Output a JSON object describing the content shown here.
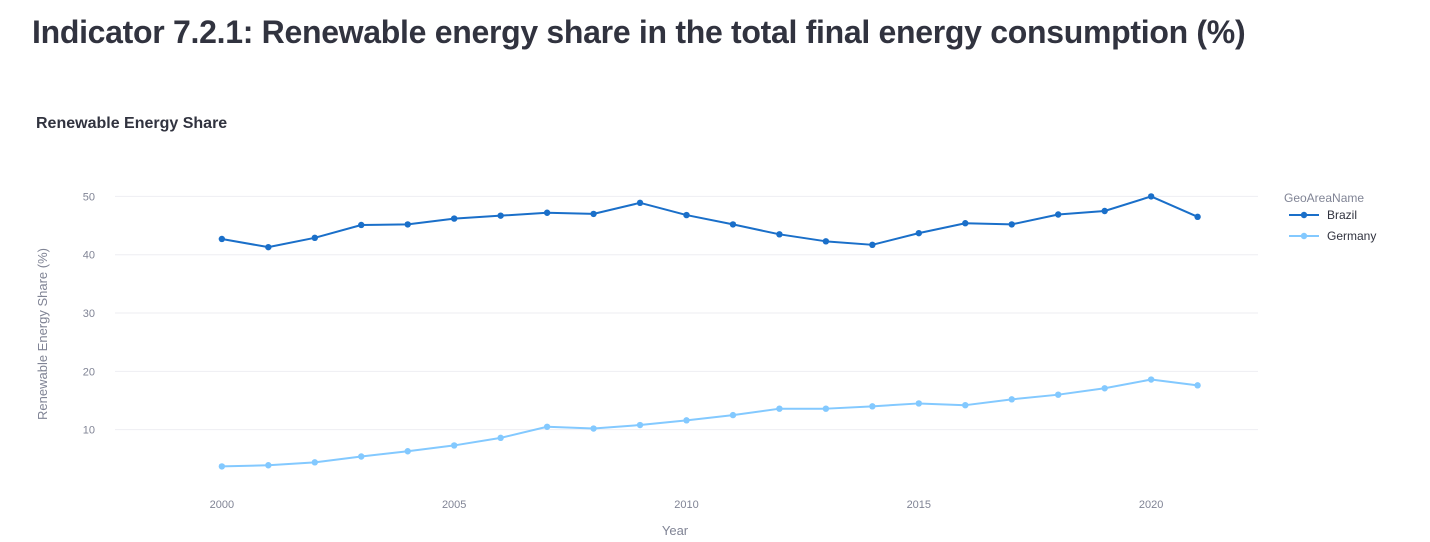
{
  "page": {
    "title": "Indicator 7.2.1: Renewable energy share in the total final energy consumption (%)"
  },
  "chart_data": {
    "type": "line",
    "title": "Renewable Energy Share",
    "xlabel": "Year",
    "ylabel": "Renewable Energy Share (%)",
    "x": [
      2000,
      2001,
      2002,
      2003,
      2004,
      2005,
      2006,
      2007,
      2008,
      2009,
      2010,
      2011,
      2012,
      2013,
      2014,
      2015,
      2016,
      2017,
      2018,
      2019,
      2020,
      2021
    ],
    "x_ticks": [
      2000,
      2005,
      2010,
      2015,
      2020
    ],
    "y_ticks": [
      10,
      20,
      30,
      40,
      50
    ],
    "xlim": [
      1997.7,
      2022.3
    ],
    "ylim": [
      0,
      53.5
    ],
    "grid": true,
    "legend": {
      "title": "GeoAreaName",
      "position": "right"
    },
    "series": [
      {
        "name": "Brazil",
        "color": "#1a6fc9",
        "values": [
          42.7,
          41.3,
          42.9,
          45.1,
          45.2,
          46.2,
          46.7,
          47.2,
          47.0,
          48.9,
          46.8,
          45.2,
          43.5,
          42.3,
          41.7,
          43.7,
          45.4,
          45.2,
          46.9,
          47.5,
          50.0,
          46.5
        ]
      },
      {
        "name": "Germany",
        "color": "#83c9ff",
        "values": [
          3.7,
          3.9,
          4.4,
          5.4,
          6.3,
          7.3,
          8.6,
          10.5,
          10.2,
          10.8,
          11.6,
          12.5,
          13.6,
          13.6,
          14.0,
          14.5,
          14.2,
          15.2,
          16.0,
          17.1,
          18.6,
          17.6
        ]
      }
    ]
  }
}
